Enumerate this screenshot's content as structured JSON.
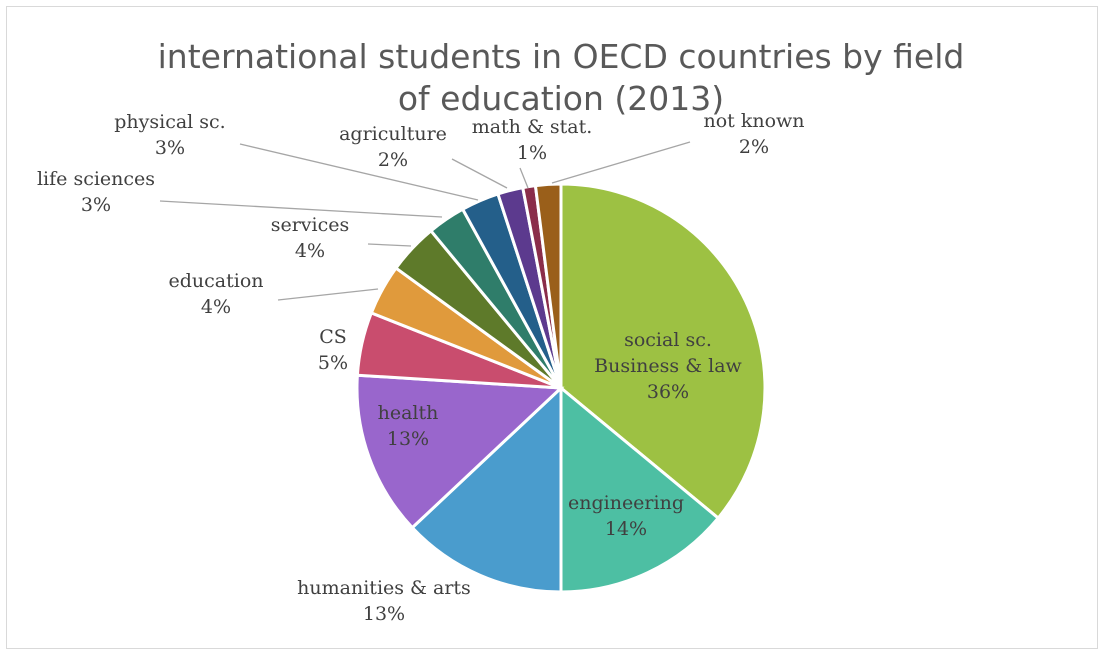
{
  "chart_data": {
    "type": "pie",
    "title": "international students in OECD countries by field of education (2013)",
    "slices": [
      {
        "name": "social sc. Business & law",
        "label_lines": [
          "social sc.",
          "Business & law"
        ],
        "value": 36,
        "pct_label": "36%",
        "color": "#9dc143"
      },
      {
        "name": "engineering",
        "label_lines": [
          "engineering"
        ],
        "value": 14,
        "pct_label": "14%",
        "color": "#4dbfa3"
      },
      {
        "name": "humanities & arts",
        "label_lines": [
          "humanities & arts"
        ],
        "value": 13,
        "pct_label": "13%",
        "color": "#4a9ccd"
      },
      {
        "name": "health",
        "label_lines": [
          "health"
        ],
        "value": 13,
        "pct_label": "13%",
        "color": "#9966cc"
      },
      {
        "name": "CS",
        "label_lines": [
          "CS"
        ],
        "value": 5,
        "pct_label": "5%",
        "color": "#c94d6e"
      },
      {
        "name": "education",
        "label_lines": [
          "education"
        ],
        "value": 4,
        "pct_label": "4%",
        "color": "#e09a3c"
      },
      {
        "name": "services",
        "label_lines": [
          "services"
        ],
        "value": 4,
        "pct_label": "4%",
        "color": "#5e7a2a"
      },
      {
        "name": "life sciences",
        "label_lines": [
          "life sciences"
        ],
        "value": 3,
        "pct_label": "3%",
        "color": "#2f7d6a"
      },
      {
        "name": "physical sc.",
        "label_lines": [
          "physical sc."
        ],
        "value": 3,
        "pct_label": "3%",
        "color": "#245f8a"
      },
      {
        "name": "agriculture",
        "label_lines": [
          "agriculture"
        ],
        "value": 2,
        "pct_label": "2%",
        "color": "#5c3a8e"
      },
      {
        "name": "math & stat.",
        "label_lines": [
          "math & stat."
        ],
        "value": 1,
        "pct_label": "1%",
        "color": "#8a2d4a"
      },
      {
        "name": "not known",
        "label_lines": [
          "not known"
        ],
        "value": 2,
        "pct_label": "2%",
        "color": "#9a5f1a"
      }
    ],
    "legend": "none",
    "data_labels": "category name and percentage"
  }
}
